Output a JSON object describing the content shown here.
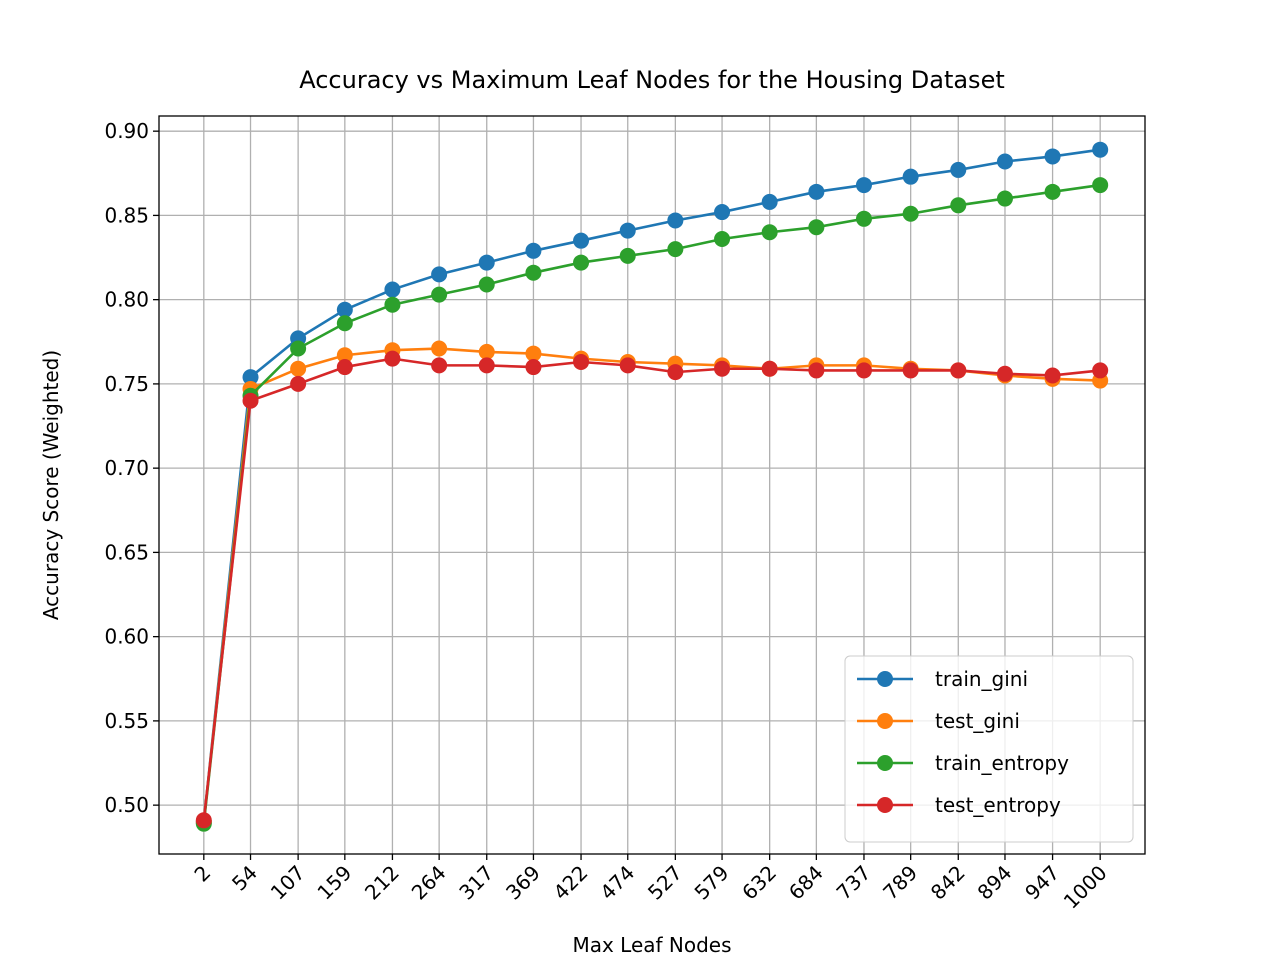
{
  "chart_data": {
    "type": "line",
    "title": "Accuracy vs Maximum Leaf Nodes for the Housing Dataset",
    "x_label": "Max Leaf Nodes",
    "y_label": "Accuracy Score (Weighted)",
    "x": [
      2,
      54,
      107,
      159,
      212,
      264,
      317,
      369,
      422,
      474,
      527,
      579,
      632,
      684,
      737,
      789,
      842,
      894,
      947,
      1000
    ],
    "xticks": [
      2,
      54,
      107,
      159,
      212,
      264,
      317,
      369,
      422,
      474,
      527,
      579,
      632,
      684,
      737,
      789,
      842,
      894,
      947,
      1000
    ],
    "xlim": [
      -47.9,
      1049.9
    ],
    "ylim": [
      0.471,
      0.909
    ],
    "yticks": [
      {
        "value": 0.5,
        "label": "0.50"
      },
      {
        "value": 0.55,
        "label": "0.55"
      },
      {
        "value": 0.6,
        "label": "0.60"
      },
      {
        "value": 0.65,
        "label": "0.65"
      },
      {
        "value": 0.7,
        "label": "0.70"
      },
      {
        "value": 0.75,
        "label": "0.75"
      },
      {
        "value": 0.8,
        "label": "0.80"
      },
      {
        "value": 0.85,
        "label": "0.85"
      },
      {
        "value": 0.9,
        "label": "0.90"
      }
    ],
    "grid": true,
    "legend": "lower right",
    "series": [
      {
        "name": "train_gini",
        "color": "#1f77b4",
        "values": [
          0.49,
          0.754,
          0.777,
          0.794,
          0.806,
          0.815,
          0.822,
          0.829,
          0.835,
          0.841,
          0.847,
          0.852,
          0.858,
          0.864,
          0.868,
          0.873,
          0.877,
          0.882,
          0.885,
          0.889
        ]
      },
      {
        "name": "test_gini",
        "color": "#ff7f0e",
        "values": [
          0.49,
          0.747,
          0.759,
          0.767,
          0.77,
          0.771,
          0.769,
          0.768,
          0.765,
          0.763,
          0.762,
          0.761,
          0.759,
          0.761,
          0.761,
          0.759,
          0.758,
          0.755,
          0.753,
          0.752
        ]
      },
      {
        "name": "train_entropy",
        "color": "#2ca02c",
        "values": [
          0.489,
          0.743,
          0.771,
          0.786,
          0.797,
          0.803,
          0.809,
          0.816,
          0.822,
          0.826,
          0.83,
          0.836,
          0.84,
          0.843,
          0.848,
          0.851,
          0.856,
          0.86,
          0.864,
          0.868
        ]
      },
      {
        "name": "test_entropy",
        "color": "#d62728",
        "values": [
          0.491,
          0.74,
          0.75,
          0.76,
          0.765,
          0.761,
          0.761,
          0.76,
          0.763,
          0.761,
          0.757,
          0.759,
          0.759,
          0.758,
          0.758,
          0.758,
          0.758,
          0.756,
          0.755,
          0.758
        ]
      }
    ]
  }
}
